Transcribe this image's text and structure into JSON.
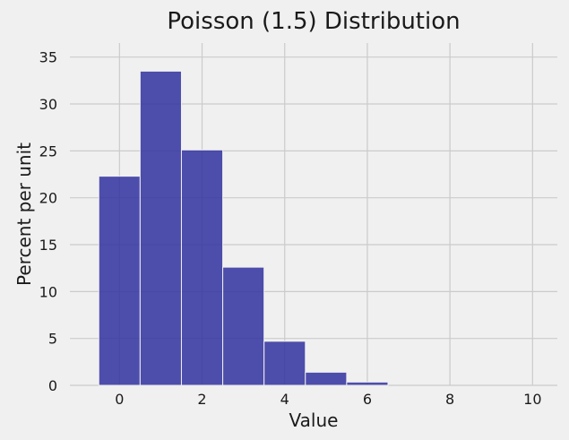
{
  "chart_data": {
    "type": "bar",
    "title": "Poisson (1.5) Distribution",
    "xlabel": "Value",
    "ylabel": "Percent per unit",
    "bin_width": 1,
    "bins": [
      {
        "start": -0.5,
        "end": 0.5,
        "value": 22.3
      },
      {
        "start": 0.5,
        "end": 1.5,
        "value": 33.5
      },
      {
        "start": 1.5,
        "end": 2.5,
        "value": 25.1
      },
      {
        "start": 2.5,
        "end": 3.5,
        "value": 12.6
      },
      {
        "start": 3.5,
        "end": 4.5,
        "value": 4.7
      },
      {
        "start": 4.5,
        "end": 5.5,
        "value": 1.4
      },
      {
        "start": 5.5,
        "end": 6.5,
        "value": 0.35
      }
    ],
    "xlim": [
      -1.2,
      10.6
    ],
    "ylim": [
      0,
      36.5
    ],
    "xticks": [
      0,
      2,
      4,
      6,
      8,
      10
    ],
    "yticks": [
      0,
      5,
      10,
      15,
      20,
      25,
      30,
      35
    ],
    "bar_color": "#3535a0",
    "grid": true
  }
}
